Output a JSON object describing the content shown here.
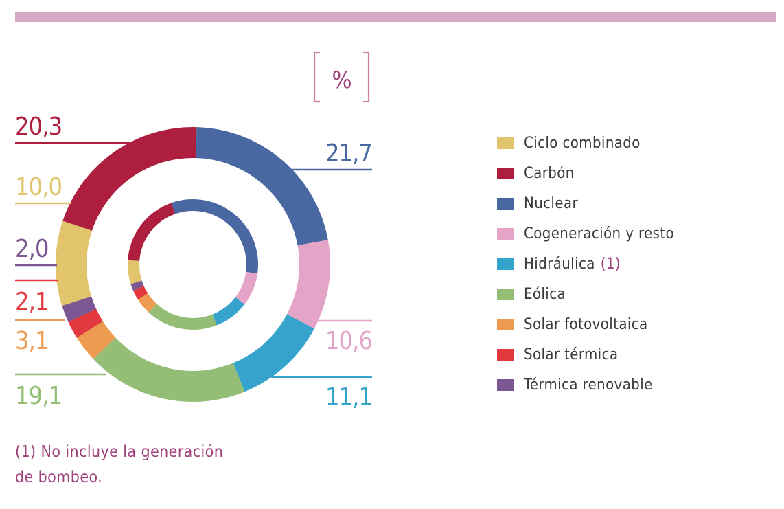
{
  "chart_data": {
    "type": "donut",
    "unit_label": "%",
    "categories": [
      "Ciclo combinado",
      "Carbón",
      "Nuclear",
      "Cogeneración y resto",
      "Hidráulica",
      "Eólica",
      "Solar fotovoltaica",
      "Solar térmica",
      "Térmica renovable"
    ],
    "colors": [
      "#e2c46c",
      "#ae1f3f",
      "#4968a2",
      "#e3a4c8",
      "#35a3cb",
      "#94be76",
      "#ee9b52",
      "#e2383e",
      "#7b5894"
    ],
    "series": [
      {
        "ring": "outer",
        "values": [
          10.0,
          20.3,
          21.7,
          10.6,
          11.1,
          19.1,
          3.1,
          2.1,
          2.0
        ],
        "labels": [
          "10,0",
          "20,3",
          "21,7",
          "10,6",
          "11,1",
          "19,1",
          "3,1",
          "2,1",
          "2,0"
        ]
      },
      {
        "ring": "inner",
        "values": [
          5.9,
          18.6,
          32.6,
          8.2,
          8.6,
          17.8,
          4.1,
          2.5,
          1.7
        ]
      }
    ]
  },
  "legend": [
    {
      "label": "Ciclo combinado"
    },
    {
      "label": "Carbón"
    },
    {
      "label": "Nuclear"
    },
    {
      "label": "Cogeneración y resto"
    },
    {
      "label": "Hidráulica",
      "note": "(1)"
    },
    {
      "label": "Eólica"
    },
    {
      "label": "Solar fotovoltaica"
    },
    {
      "label": "Solar térmica"
    },
    {
      "label": "Térmica renovable"
    }
  ],
  "footnote": {
    "line1": "(1) No incluye la generación",
    "line2": "de bombeo."
  }
}
